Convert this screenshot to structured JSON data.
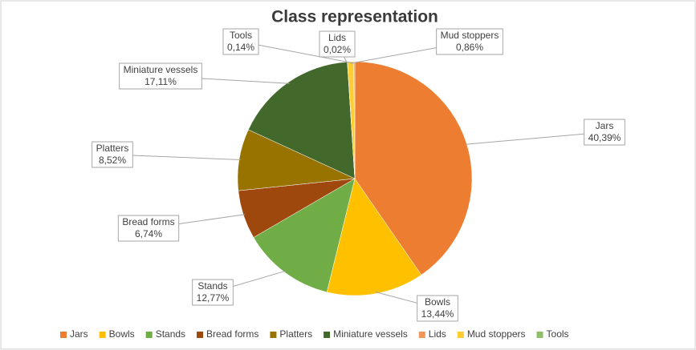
{
  "chart_data": {
    "type": "pie",
    "title": "Class representation",
    "categories": [
      "Jars",
      "Bowls",
      "Stands",
      "Bread forms",
      "Platters",
      "Miniature vessels",
      "Lids",
      "Mud stoppers",
      "Tools"
    ],
    "values": [
      40.39,
      13.44,
      12.77,
      6.74,
      8.52,
      17.11,
      0.02,
      0.86,
      0.14
    ],
    "value_labels": [
      "40,39%",
      "13,44%",
      "12,77%",
      "6,74%",
      "8,52%",
      "17,11%",
      "0,02%",
      "0,86%",
      "0,14%"
    ],
    "colors": [
      "#ed7d31",
      "#ffc000",
      "#70ad47",
      "#9e480e",
      "#997300",
      "#43682b",
      "#f1975a",
      "#ffcd33",
      "#8cc168"
    ],
    "legend": "bottom"
  }
}
